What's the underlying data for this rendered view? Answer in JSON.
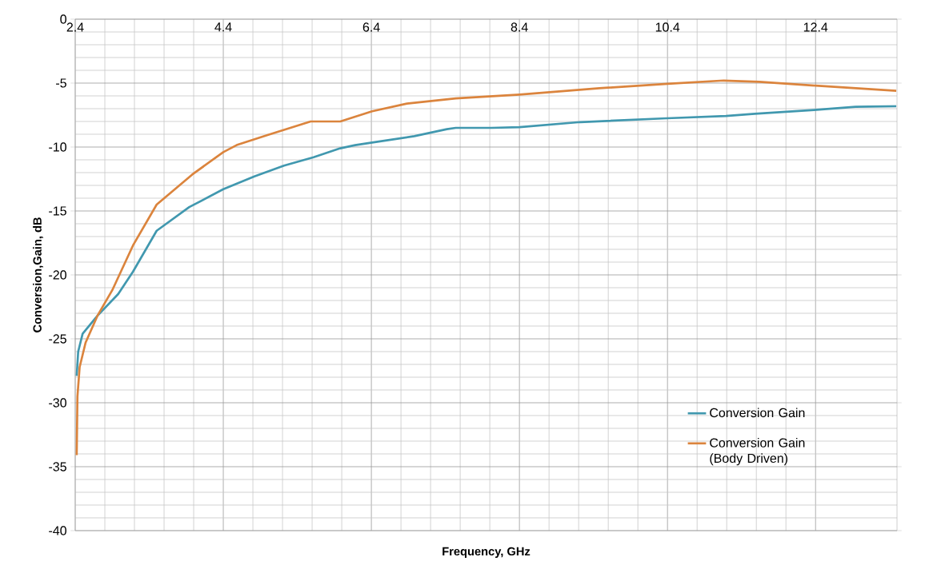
{
  "chart_data": {
    "type": "line",
    "xlabel": "Frequency, GHz",
    "ylabel": "Conversion,Gain, dB",
    "xlim": [
      2.4,
      13.5
    ],
    "ylim": [
      -40,
      0
    ],
    "xticks": [
      2.4,
      4.4,
      6.4,
      8.4,
      10.4,
      12.4
    ],
    "yticks": [
      -40,
      -35,
      -30,
      -25,
      -20,
      -15,
      -10,
      -5,
      0
    ],
    "grid": true,
    "legend": "bottom right",
    "series": [
      {
        "name": "Conversion Gain",
        "color": "#4198af",
        "x": [
          2.42,
          2.44,
          2.5,
          2.7,
          2.98,
          3.18,
          3.5,
          3.94,
          4.4,
          4.82,
          5.22,
          5.62,
          5.98,
          6.18,
          6.41,
          6.98,
          7.42,
          7.54,
          8.02,
          8.4,
          9.22,
          10.39,
          11.19,
          11.58,
          12.38,
          12.94,
          13.49
        ],
        "values": [
          -27.9,
          -26.0,
          -24.6,
          -23.2,
          -21.5,
          -19.75,
          -16.55,
          -14.7,
          -13.3,
          -12.3,
          -11.45,
          -10.8,
          -10.1,
          -9.85,
          -9.65,
          -9.15,
          -8.6,
          -8.5,
          -8.5,
          -8.45,
          -8.05,
          -7.75,
          -7.57,
          -7.4,
          -7.1,
          -6.85,
          -6.8
        ]
      },
      {
        "name": "Conversion Gain (Body Driven)",
        "color": "#db843d",
        "x": [
          2.42,
          2.43,
          2.46,
          2.54,
          2.7,
          2.9,
          3.18,
          3.5,
          3.98,
          4.4,
          4.58,
          4.98,
          5.58,
          5.98,
          6.41,
          6.88,
          7.54,
          8.4,
          9.48,
          10.4,
          11.16,
          11.64,
          12.4,
          13.49
        ],
        "values": [
          -34.1,
          -29.5,
          -27.2,
          -25.3,
          -23.2,
          -21.2,
          -17.7,
          -14.5,
          -12.15,
          -10.4,
          -9.85,
          -9.1,
          -8.0,
          -8.0,
          -7.2,
          -6.6,
          -6.2,
          -5.9,
          -5.4,
          -5.06,
          -4.8,
          -4.9,
          -5.2,
          -5.6
        ]
      }
    ]
  }
}
